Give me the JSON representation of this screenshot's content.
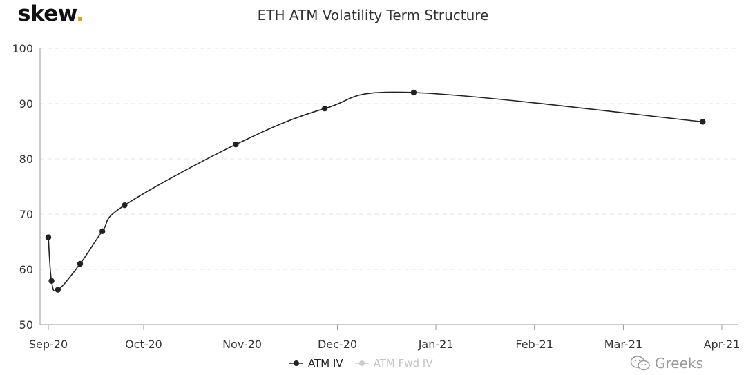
{
  "brand": {
    "name": "skew",
    "dot": "."
  },
  "chart_data": {
    "type": "line",
    "title": "ETH ATM Volatility Term Structure",
    "xlabel": "",
    "ylabel": "",
    "ylim": [
      50,
      100
    ],
    "yticks": [
      50,
      60,
      70,
      80,
      90,
      100
    ],
    "xticks": [
      {
        "date": "2020-09-01",
        "label": "Sep-20"
      },
      {
        "date": "2020-10-01",
        "label": "Oct-20"
      },
      {
        "date": "2020-11-01",
        "label": "Nov-20"
      },
      {
        "date": "2020-12-01",
        "label": "Dec-20"
      },
      {
        "date": "2021-01-01",
        "label": "Jan-21"
      },
      {
        "date": "2021-02-01",
        "label": "Feb-21"
      },
      {
        "date": "2021-03-01",
        "label": "Mar-21"
      },
      {
        "date": "2021-04-01",
        "label": "Apr-21"
      }
    ],
    "xlim": [
      "2020-09-01",
      "2021-04-06"
    ],
    "grid": "horizontal dashed",
    "legend_position": "bottom-center",
    "series": [
      {
        "name": "ATM IV",
        "color": "#222222",
        "active": true,
        "points": [
          {
            "x": "2020-09-01",
            "y": 65.8
          },
          {
            "x": "2020-09-02",
            "y": 57.9
          },
          {
            "x": "2020-09-04",
            "y": 56.3
          },
          {
            "x": "2020-09-11",
            "y": 61.0
          },
          {
            "x": "2020-09-18",
            "y": 66.9
          },
          {
            "x": "2020-09-25",
            "y": 71.6
          },
          {
            "x": "2020-10-30",
            "y": 82.6
          },
          {
            "x": "2020-11-27",
            "y": 89.1
          },
          {
            "x": "2020-12-25",
            "y": 92.0
          },
          {
            "x": "2021-03-26",
            "y": 86.7
          }
        ]
      },
      {
        "name": "ATM Fwd IV",
        "color": "#cccccc",
        "active": false,
        "points": []
      }
    ]
  },
  "watermark": {
    "text": "Greeks"
  }
}
